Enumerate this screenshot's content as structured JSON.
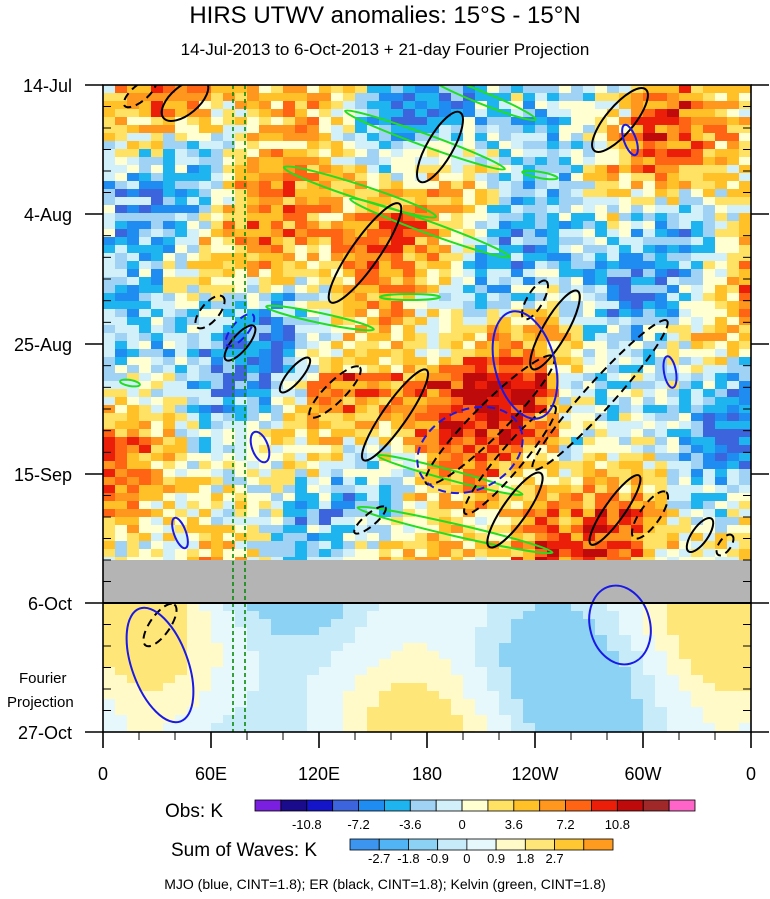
{
  "header": {
    "title": "HIRS UTWV anomalies: 15°S - 15°N",
    "subtitle": "14-Jul-2013 to 6-Oct-2013 + 21-day Fourier Projection"
  },
  "chart_data": {
    "type": "heatmap",
    "title": "HIRS UTWV anomalies: 15°S - 15°N",
    "subtitle": "14-Jul-2013 to 6-Oct-2013 + 21-day Fourier Projection",
    "x_ticks": [
      "0",
      "60E",
      "120E",
      "180",
      "120W",
      "60W",
      "0"
    ],
    "y_ticks": [
      "14-Jul",
      "4-Aug",
      "25-Aug",
      "15-Sep",
      "6-Oct",
      "27-Oct"
    ],
    "projection_label_line1": "Fourier",
    "projection_label_line2": "Projection",
    "obs_label": "Obs: K",
    "obs_levels": [
      "-10.8",
      "-7.2",
      "-3.6",
      "0",
      "3.6",
      "7.2",
      "10.8"
    ],
    "obs_colors": [
      "#7a1ee0",
      "#1a0a8c",
      "#1414c8",
      "#3c64dc",
      "#1e8cf0",
      "#1eb4f0",
      "#a0d2f5",
      "#d2f0fa",
      "#ffffd2",
      "#ffe164",
      "#ffc028",
      "#ff961e",
      "#ff6414",
      "#eb1e0a",
      "#be0a0a",
      "#a02828",
      "#ff64c8"
    ],
    "waves_label": "Sum of Waves: K",
    "waves_levels": [
      "-2.7",
      "-1.8",
      "-0.9",
      "0",
      "0.9",
      "1.8",
      "2.7"
    ],
    "waves_colors": [
      "#3c96f0",
      "#50b4f5",
      "#8cd2f5",
      "#c8ebfa",
      "#e6f8fc",
      "#fffac8",
      "#ffe678",
      "#ffc832",
      "#ff9b1e"
    ],
    "footer": "MJO (blue, CINT=1.8); ER (black, CINT=1.8); Kelvin (green, CINT=1.8)",
    "mjo_color": "#1a1ae6",
    "er_color": "#000000",
    "kelvin_color": "#22dd22",
    "marker_lines_color": "#0a8a0a",
    "missing_color": "#b4b4b4"
  }
}
